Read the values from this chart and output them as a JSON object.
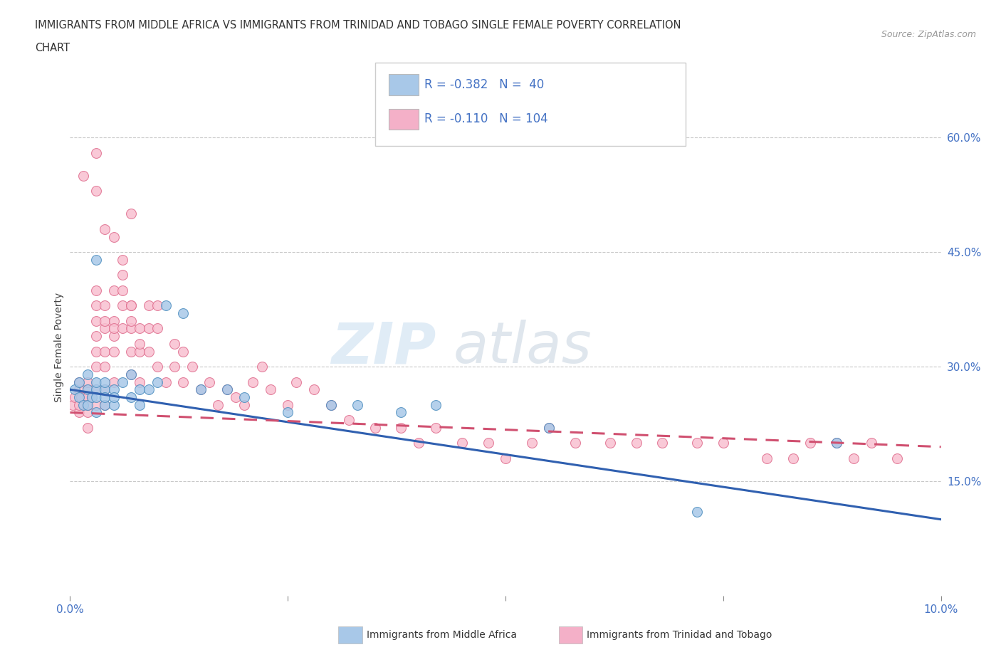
{
  "title_line1": "IMMIGRANTS FROM MIDDLE AFRICA VS IMMIGRANTS FROM TRINIDAD AND TOBAGO SINGLE FEMALE POVERTY CORRELATION",
  "title_line2": "CHART",
  "source": "Source: ZipAtlas.com",
  "ylabel": "Single Female Poverty",
  "xlim": [
    0.0,
    0.1
  ],
  "ylim": [
    0.0,
    0.65
  ],
  "yticks": [
    0.15,
    0.3,
    0.45,
    0.6
  ],
  "ytick_labels": [
    "15.0%",
    "30.0%",
    "45.0%",
    "60.0%"
  ],
  "xticks": [
    0.0,
    0.025,
    0.05,
    0.075,
    0.1
  ],
  "xtick_labels": [
    "0.0%",
    "",
    "",
    "",
    "10.0%"
  ],
  "watermark_zip": "ZIP",
  "watermark_atlas": "atlas",
  "legend": [
    {
      "label": "Immigrants from Middle Africa",
      "color": "#a8c8e8",
      "R": -0.382,
      "N": 40
    },
    {
      "label": "Immigrants from Trinidad and Tobago",
      "color": "#f4b0c8",
      "R": -0.11,
      "N": 104
    }
  ],
  "blue_scatter_x": [
    0.0005,
    0.001,
    0.001,
    0.0015,
    0.002,
    0.002,
    0.002,
    0.0025,
    0.003,
    0.003,
    0.003,
    0.003,
    0.003,
    0.004,
    0.004,
    0.004,
    0.004,
    0.005,
    0.005,
    0.005,
    0.006,
    0.007,
    0.007,
    0.008,
    0.008,
    0.009,
    0.01,
    0.011,
    0.013,
    0.015,
    0.018,
    0.02,
    0.025,
    0.03,
    0.033,
    0.038,
    0.042,
    0.055,
    0.072,
    0.088
  ],
  "blue_scatter_y": [
    0.27,
    0.26,
    0.28,
    0.25,
    0.27,
    0.29,
    0.25,
    0.26,
    0.27,
    0.24,
    0.28,
    0.26,
    0.44,
    0.25,
    0.27,
    0.26,
    0.28,
    0.25,
    0.27,
    0.26,
    0.28,
    0.26,
    0.29,
    0.25,
    0.27,
    0.27,
    0.28,
    0.38,
    0.37,
    0.27,
    0.27,
    0.26,
    0.24,
    0.25,
    0.25,
    0.24,
    0.25,
    0.22,
    0.11,
    0.2
  ],
  "pink_scatter_x": [
    0.0003,
    0.0005,
    0.001,
    0.001,
    0.001,
    0.001,
    0.0013,
    0.0015,
    0.002,
    0.002,
    0.002,
    0.002,
    0.002,
    0.002,
    0.0025,
    0.003,
    0.003,
    0.003,
    0.003,
    0.003,
    0.003,
    0.003,
    0.003,
    0.004,
    0.004,
    0.004,
    0.004,
    0.004,
    0.004,
    0.004,
    0.005,
    0.005,
    0.005,
    0.005,
    0.005,
    0.005,
    0.006,
    0.006,
    0.006,
    0.006,
    0.007,
    0.007,
    0.007,
    0.007,
    0.007,
    0.007,
    0.008,
    0.008,
    0.008,
    0.008,
    0.009,
    0.009,
    0.009,
    0.01,
    0.01,
    0.01,
    0.011,
    0.012,
    0.012,
    0.013,
    0.013,
    0.014,
    0.015,
    0.016,
    0.017,
    0.018,
    0.019,
    0.02,
    0.021,
    0.022,
    0.023,
    0.025,
    0.026,
    0.028,
    0.03,
    0.032,
    0.035,
    0.038,
    0.04,
    0.042,
    0.045,
    0.048,
    0.05,
    0.053,
    0.055,
    0.058,
    0.062,
    0.065,
    0.068,
    0.072,
    0.075,
    0.08,
    0.083,
    0.085,
    0.088,
    0.09,
    0.092,
    0.095,
    0.003,
    0.003,
    0.004,
    0.005,
    0.006,
    0.007
  ],
  "pink_scatter_y": [
    0.25,
    0.26,
    0.27,
    0.24,
    0.25,
    0.28,
    0.26,
    0.55,
    0.24,
    0.27,
    0.26,
    0.28,
    0.25,
    0.22,
    0.26,
    0.3,
    0.32,
    0.34,
    0.36,
    0.38,
    0.4,
    0.25,
    0.27,
    0.35,
    0.38,
    0.32,
    0.3,
    0.36,
    0.25,
    0.27,
    0.34,
    0.32,
    0.4,
    0.28,
    0.36,
    0.35,
    0.38,
    0.4,
    0.35,
    0.42,
    0.38,
    0.35,
    0.32,
    0.38,
    0.36,
    0.29,
    0.35,
    0.32,
    0.28,
    0.33,
    0.35,
    0.38,
    0.32,
    0.35,
    0.38,
    0.3,
    0.28,
    0.33,
    0.3,
    0.32,
    0.28,
    0.3,
    0.27,
    0.28,
    0.25,
    0.27,
    0.26,
    0.25,
    0.28,
    0.3,
    0.27,
    0.25,
    0.28,
    0.27,
    0.25,
    0.23,
    0.22,
    0.22,
    0.2,
    0.22,
    0.2,
    0.2,
    0.18,
    0.2,
    0.22,
    0.2,
    0.2,
    0.2,
    0.2,
    0.2,
    0.2,
    0.18,
    0.18,
    0.2,
    0.2,
    0.18,
    0.2,
    0.18,
    0.58,
    0.53,
    0.48,
    0.47,
    0.44,
    0.5
  ],
  "blue_color": "#a8c8e8",
  "blue_edge_color": "#5090c0",
  "pink_color": "#f8c0d0",
  "pink_edge_color": "#e07090",
  "blue_line_color": "#3060b0",
  "pink_line_color": "#d05070",
  "grid_color": "#c8c8c8",
  "axis_label_color": "#4472c4",
  "background_color": "#ffffff",
  "blue_line_y0": 0.27,
  "blue_line_y1": 0.1,
  "pink_line_y0": 0.24,
  "pink_line_y1": 0.195
}
